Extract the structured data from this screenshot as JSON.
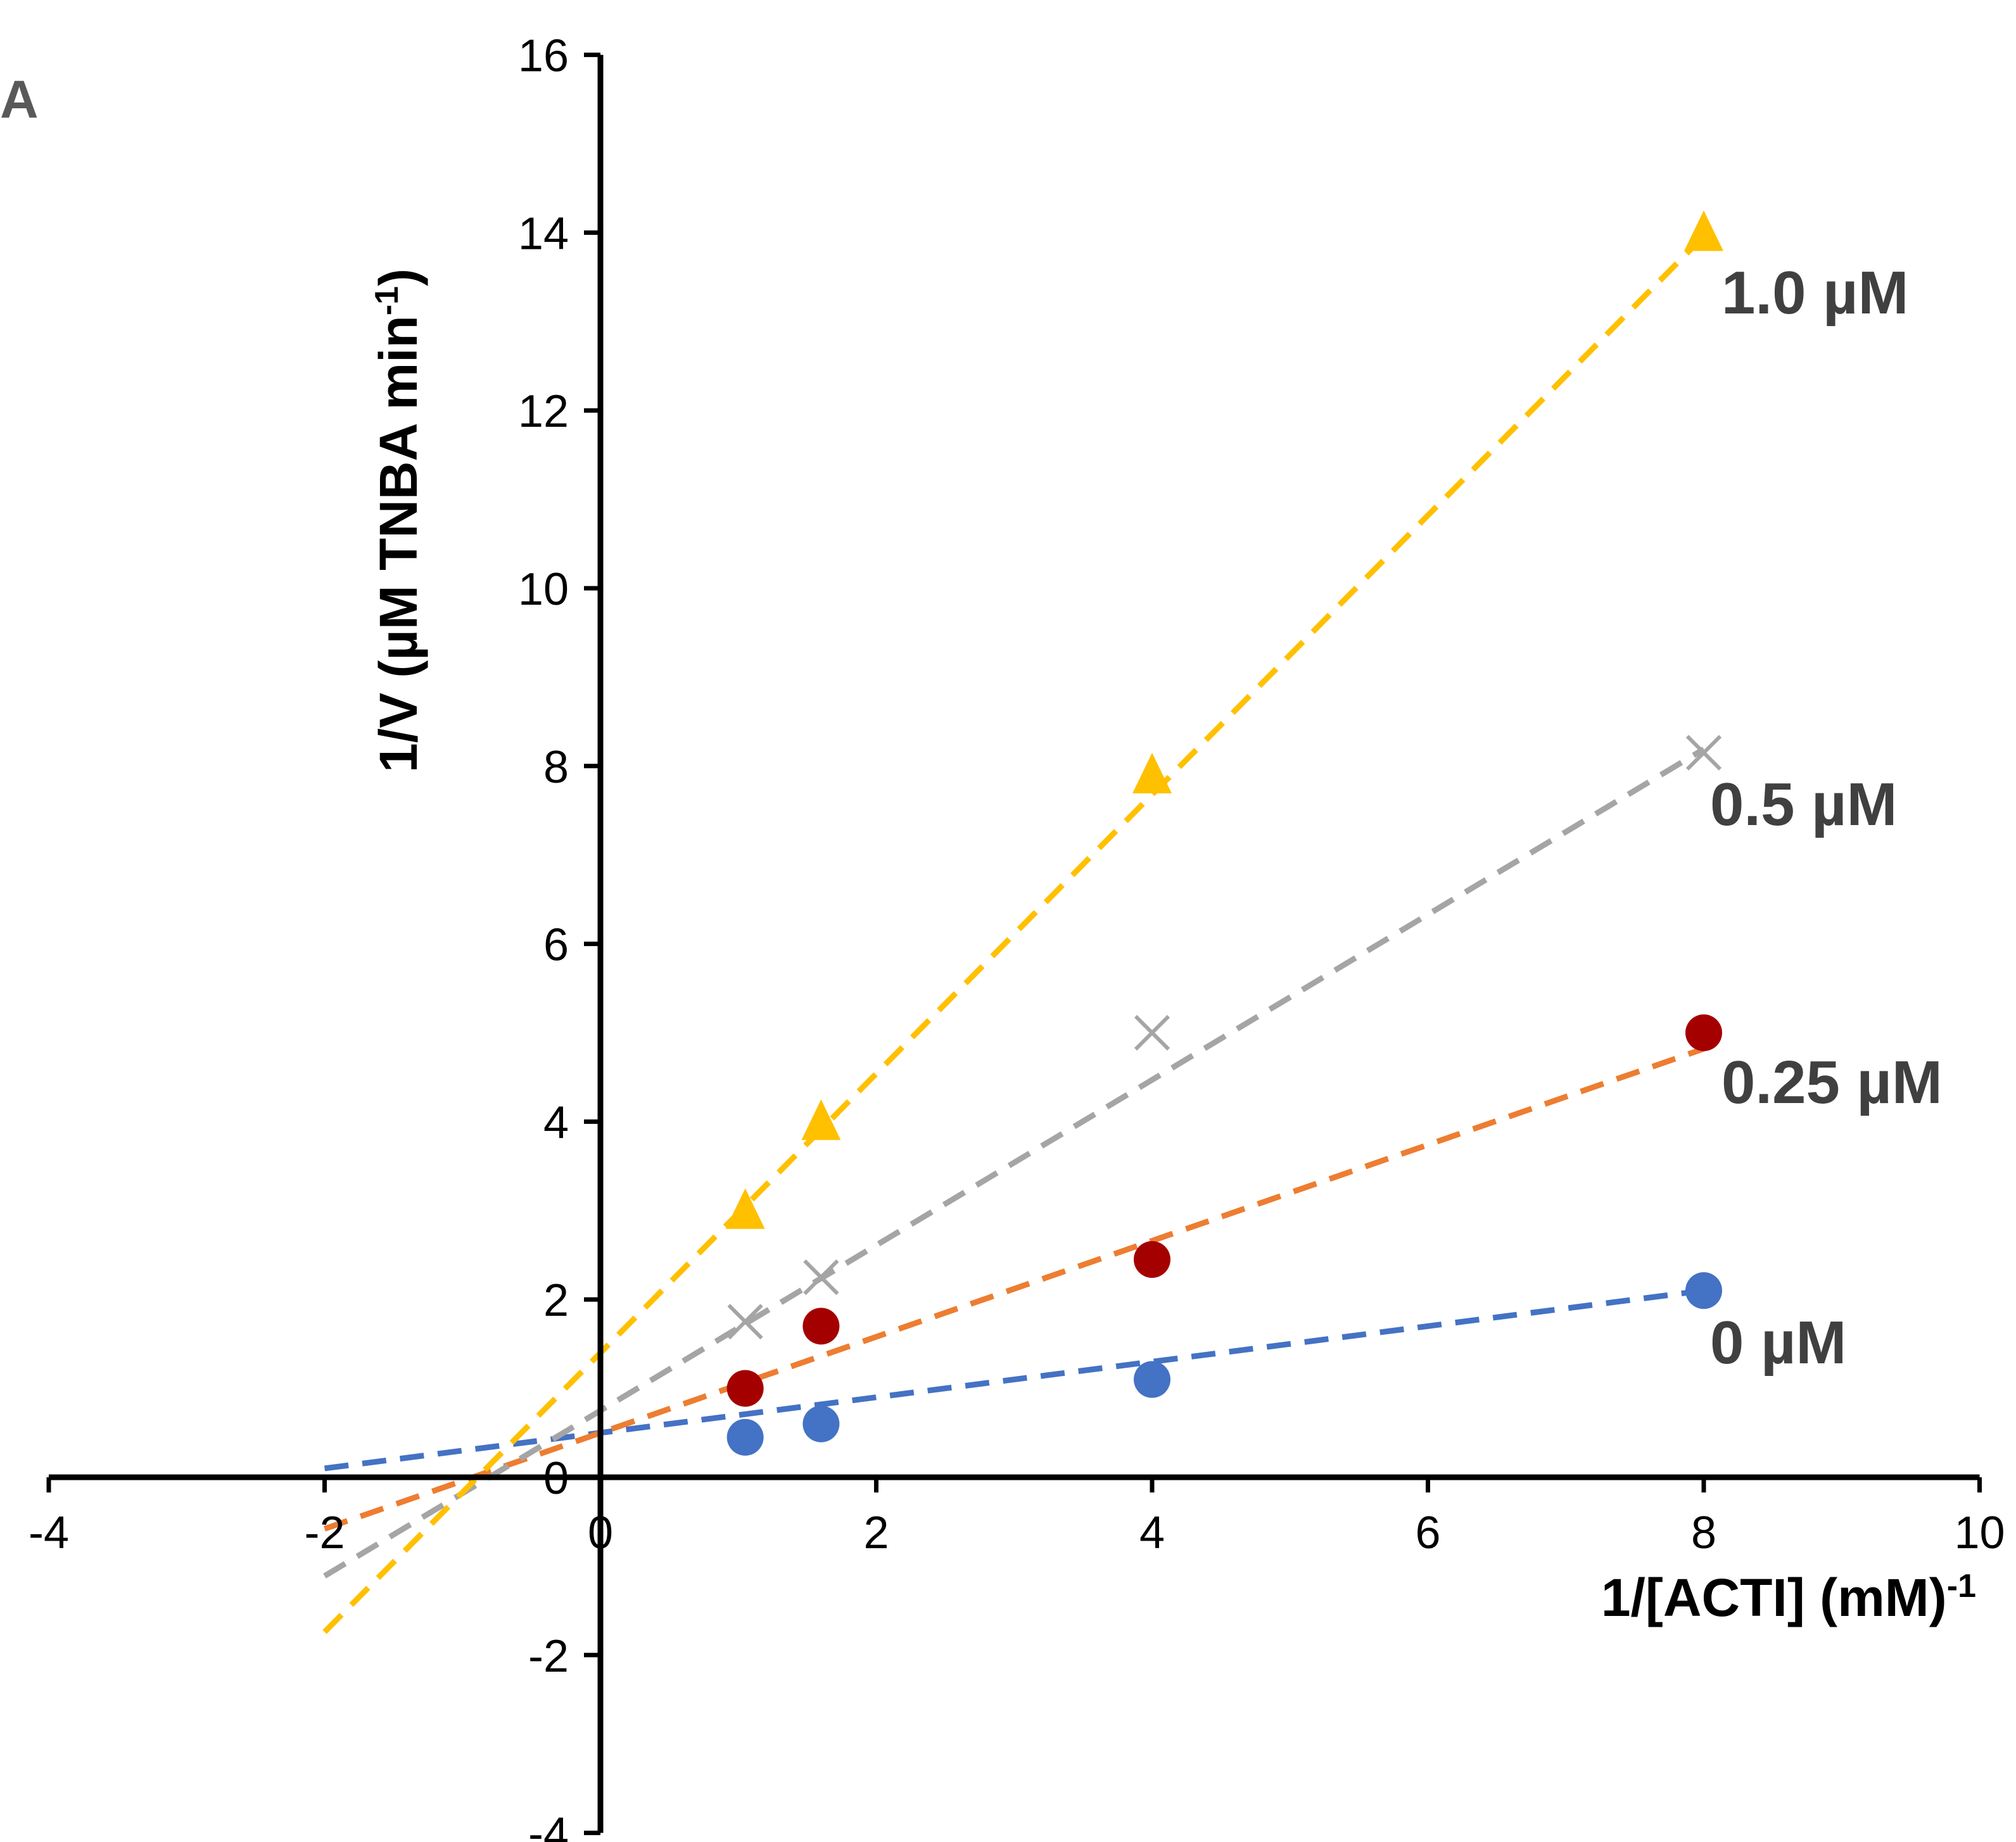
{
  "chart_data": {
    "type": "scatter",
    "panel_label": "A",
    "title": "",
    "xlabel": "1/[ACTI] (mM)",
    "xlabel_sup": "-1",
    "ylabel": "1/V (µM TNBA min",
    "ylabel_sup": "-1",
    "ylabel_close": ")",
    "xlim": [
      -4,
      10
    ],
    "ylim": [
      -4,
      16
    ],
    "x_ticks": [
      -4,
      -2,
      0,
      2,
      4,
      6,
      8,
      10
    ],
    "y_ticks": [
      -4,
      -2,
      0,
      2,
      4,
      6,
      8,
      10,
      12,
      14,
      16
    ],
    "grid": false,
    "series": [
      {
        "name": "0 µM",
        "label": "0 µM",
        "color": "#4472C4",
        "marker": "circle",
        "x": [
          1.05,
          1.6,
          4,
          8
        ],
        "y": [
          0.45,
          0.6,
          1.1,
          2.1
        ],
        "fit": {
          "x_start": -2,
          "x_end": 8,
          "slope": 0.2,
          "intercept": 0.5,
          "color": "#4472C4"
        },
        "fit_intercept": 0.5
      },
      {
        "name": "0.25 µM",
        "label": "0.25 µM",
        "color": "#A50000",
        "marker": "circle",
        "x": [
          1.05,
          1.6,
          4,
          8
        ],
        "y": [
          1.0,
          1.7,
          2.45,
          5.0
        ],
        "fit": {
          "x_start": -2,
          "x_end": 8,
          "slope": 0.54,
          "intercept": 0.5,
          "color": "#ED7D31"
        },
        "fit_intercept": 0.5
      },
      {
        "name": "0.5 µM",
        "label": "0.5 µM",
        "color": "#A5A5A5",
        "marker": "x",
        "x": [
          1.05,
          1.6,
          4,
          8
        ],
        "y": [
          1.75,
          2.25,
          5.0,
          8.15
        ],
        "fit": {
          "x_start": -2,
          "x_end": 8,
          "slope": 0.93,
          "intercept": 0.75,
          "color": "#A5A5A5"
        },
        "fit_intercept": 0.75
      },
      {
        "name": "1.0 µM",
        "label": "1.0 µM",
        "color": "#FFC000",
        "marker": "triangle",
        "x": [
          1.05,
          1.6,
          4,
          8
        ],
        "y": [
          3.0,
          4.0,
          7.9,
          14.0
        ],
        "fit": {
          "x_start": -2,
          "x_end": 8,
          "slope": 1.57,
          "intercept": 1.4,
          "color": "#FFC000"
        },
        "fit_intercept": 1.4
      }
    ]
  }
}
